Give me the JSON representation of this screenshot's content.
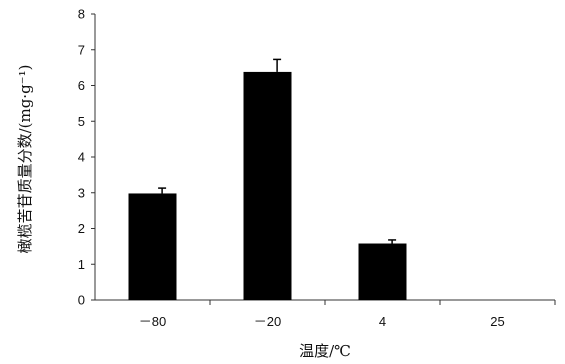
{
  "chart_data": {
    "type": "bar",
    "title": "",
    "xlabel": "温度/℃",
    "ylabel": "橄榄苦苷质量分数/(mg·g⁻¹)",
    "categories": [
      "－80",
      "－20",
      "4",
      "25"
    ],
    "values": [
      2.98,
      6.38,
      1.58,
      0
    ],
    "errors": [
      0.15,
      0.35,
      0.1,
      0
    ],
    "ylim": [
      0,
      8
    ],
    "yticks": [
      "0",
      "1",
      "2",
      "3",
      "4",
      "5",
      "6",
      "7",
      "8"
    ],
    "grid": false,
    "colors": {
      "bar": "#000000",
      "axis": "#333333"
    }
  }
}
